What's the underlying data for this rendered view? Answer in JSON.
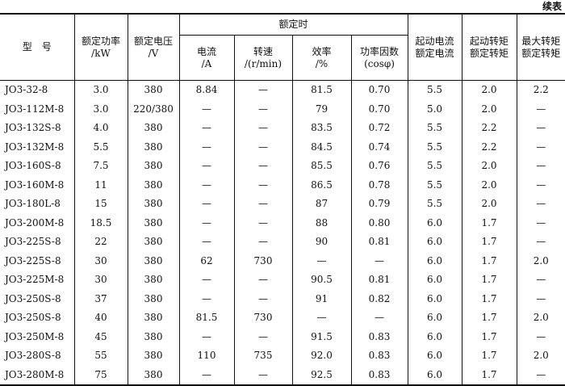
{
  "continued_label": "续表",
  "header": {
    "group_label": "额定时",
    "columns": [
      "型　号",
      "额定功率\n/kW",
      "额定电压\n/V",
      "电流\n/A",
      "转速\n/(r/min)",
      "效率\n/%",
      "功率因数\n(cosφ)",
      "起动电流\n额定电流",
      "起动转矩\n额定转矩",
      "最大转矩\n额定转矩"
    ]
  },
  "table": {
    "rows": [
      [
        "JO3-32-8",
        "3.0",
        "380",
        "8.84",
        "—",
        "81.5",
        "0.70",
        "5.5",
        "2.0",
        "2.2"
      ],
      [
        "JO3-112M-8",
        "3.0",
        "220/380",
        "—",
        "—",
        "79",
        "0.70",
        "5.0",
        "2.0",
        "—"
      ],
      [
        "JO3-132S-8",
        "4.0",
        "380",
        "—",
        "—",
        "83.5",
        "0.72",
        "5.5",
        "2.2",
        "—"
      ],
      [
        "JO3-132M-8",
        "5.5",
        "380",
        "—",
        "—",
        "84.5",
        "0.74",
        "5.5",
        "2.2",
        "—"
      ],
      [
        "JO3-160S-8",
        "7.5",
        "380",
        "—",
        "—",
        "85.5",
        "0.76",
        "5.5",
        "2.0",
        "—"
      ],
      [
        "JO3-160M-8",
        "11",
        "380",
        "—",
        "—",
        "86.5",
        "0.78",
        "5.5",
        "2.0",
        "—"
      ],
      [
        "JO3-180L-8",
        "15",
        "380",
        "—",
        "—",
        "87",
        "0.79",
        "5.5",
        "2.0",
        "—"
      ],
      [
        "JO3-200M-8",
        "18.5",
        "380",
        "—",
        "—",
        "88",
        "0.80",
        "6.0",
        "1.7",
        "—"
      ],
      [
        "JO3-225S-8",
        "22",
        "380",
        "—",
        "—",
        "90",
        "0.81",
        "6.0",
        "1.7",
        "—"
      ],
      [
        "JO3-225S-8",
        "30",
        "380",
        "62",
        "730",
        "—",
        "—",
        "6.0",
        "1.7",
        "2.0"
      ],
      [
        "JO3-225M-8",
        "30",
        "380",
        "—",
        "—",
        "90.5",
        "0.81",
        "6.0",
        "1.7",
        "—"
      ],
      [
        "JO3-250S-8",
        "37",
        "380",
        "—",
        "—",
        "91",
        "0.82",
        "6.0",
        "1.7",
        "—"
      ],
      [
        "JO3-250S-8",
        "40",
        "380",
        "81.5",
        "730",
        "—",
        "—",
        "6.0",
        "1.7",
        "2.0"
      ],
      [
        "JO3-250M-8",
        "45",
        "380",
        "—",
        "—",
        "91.5",
        "0.83",
        "6.0",
        "1.7",
        "—"
      ],
      [
        "JO3-280S-8",
        "55",
        "380",
        "110",
        "735",
        "92.0",
        "0.83",
        "6.0",
        "1.7",
        "2.0"
      ],
      [
        "JO3-280M-8",
        "75",
        "380",
        "—",
        "—",
        "92.5",
        "0.83",
        "6.0",
        "1.7",
        "—"
      ]
    ]
  }
}
